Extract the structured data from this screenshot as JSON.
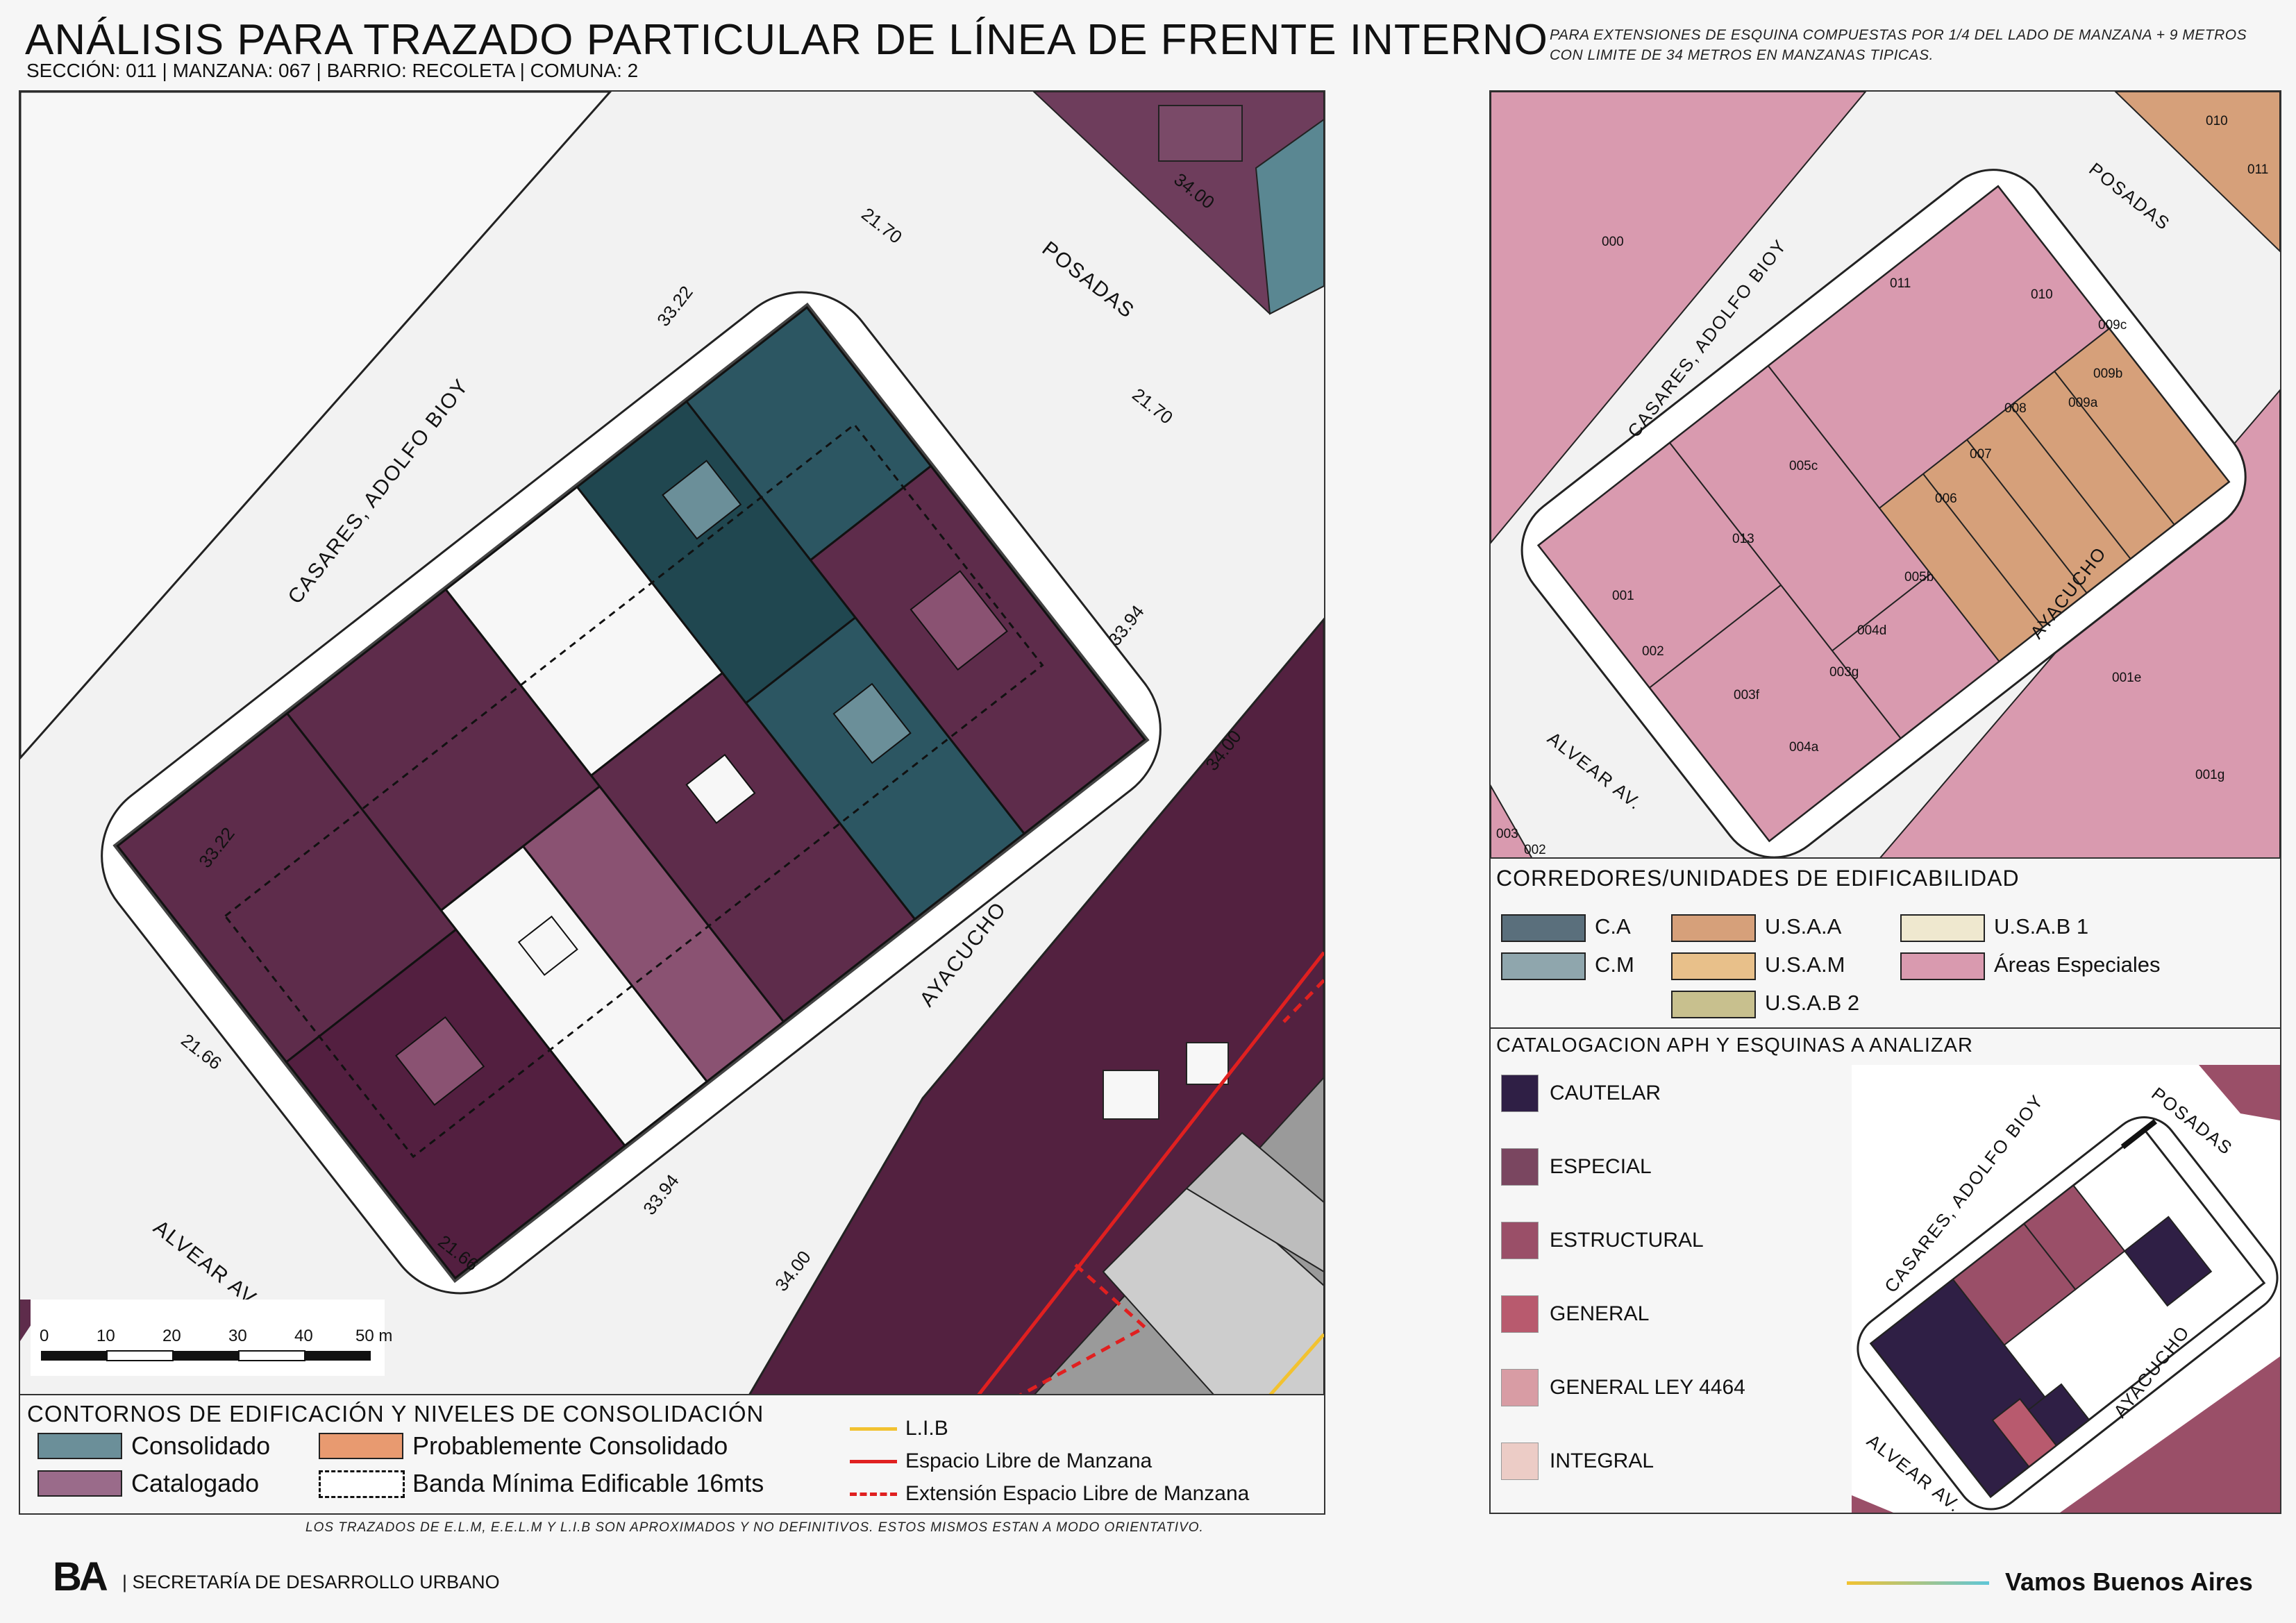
{
  "header": {
    "title": "ANÁLISIS PARA TRAZADO PARTICULAR DE LÍNEA DE FRENTE INTERNO",
    "subtitle": "SECCIÓN: 011 |  MANZANA: 067 | BARRIO: RECOLETA | COMUNA: 2",
    "note": "PARA EXTENSIONES DE ESQUINA COMPUESTAS POR 1/4 DEL LADO DE MANZANA + 9 METROS CON LIMITE DE 34 METROS EN MANZANAS TIPICAS."
  },
  "main_map": {
    "streets": {
      "north_east": "POSADAS",
      "north_west": "CASARES, ADOLFO BIOY",
      "south_east": "AYACUCHO",
      "south_west": "ALVEAR AV."
    },
    "dimensions": {
      "ne_front_1": "21.70",
      "ne_front_2": "21.70",
      "nw_front_1": "33.22",
      "nw_front_2": "33.22",
      "se_front_1": "33.94",
      "se_front_2": "33.94",
      "sw_front_1": "21.66",
      "sw_front_2": "21.66",
      "street_width_ne": "34.00",
      "street_width_se_1": "34.00",
      "street_width_se_2": "34.00"
    },
    "scale_bar": {
      "ticks": [
        "0",
        "10",
        "20",
        "30",
        "40",
        "50 m"
      ]
    },
    "colors": {
      "consolidado": "#6b8f99",
      "consolidado_dark": "#204750",
      "catalogado": "#5e2c4b",
      "catalogado_light": "#8a5272",
      "white_lot": "#f7f7f7"
    }
  },
  "legend_buildings": {
    "title": "CONTORNOS DE EDIFICACIÓN Y NIVELES DE CONSOLIDACIÓN",
    "items": [
      {
        "label": "Consolidado",
        "color": "#6b8f99"
      },
      {
        "label": "Probablemente Consolidado",
        "color": "#e89a70"
      },
      {
        "label": "Catalogado",
        "color": "#9a6b8a"
      },
      {
        "label": "Banda Mínima Edificable 16mts",
        "color": "#ffffff"
      }
    ],
    "lines": [
      {
        "label": "L.I.B",
        "color": "#f2c230"
      },
      {
        "label": "Espacio Libre de Manzana",
        "color": "#e02020"
      },
      {
        "label": "Extensión Espacio Libre de Manzana",
        "color": "#e02020"
      }
    ]
  },
  "footnote": "LOS TRAZADOS DE E.L.M, E.E.L.M Y L.I.B SON APROXIMADOS Y NO DEFINITIVOS. ESTOS MISMOS ESTAN A MODO ORIENTATIVO.",
  "parcel_map": {
    "streets": {
      "north_east": "POSADAS",
      "north_west": "CASARES, ADOLFO BIOY",
      "south_east": "AYACUCHO",
      "south_west": "ALVEAR AV."
    },
    "parcels": [
      "000",
      "011",
      "010",
      "009c",
      "009b",
      "009a",
      "008",
      "007",
      "006",
      "005c",
      "005b",
      "013",
      "004d",
      "004a",
      "003g",
      "003f",
      "002",
      "001",
      "001e",
      "001g",
      "010",
      "011",
      "003",
      "002"
    ]
  },
  "legend_corridors": {
    "title": "CORREDORES/UNIDADES DE EDIFICABILIDAD",
    "items": [
      {
        "label": "C.A",
        "color": "#5a6f7c"
      },
      {
        "label": "U.S.A.A",
        "color": "#d6a07a"
      },
      {
        "label": "U.S.A.B 1",
        "color": "#efe8cf"
      },
      {
        "label": "C.M",
        "color": "#8fa6ad"
      },
      {
        "label": "U.S.A.M",
        "color": "#e8c08a"
      },
      {
        "label": "Áreas Especiales",
        "color": "#d99aaf"
      },
      {
        "label": "U.S.A.B 2",
        "color": "#c8c08e"
      }
    ]
  },
  "legend_catalog": {
    "title": "CATALOGACION APH Y ESQUINAS A ANALIZAR",
    "items": [
      {
        "label": "CAUTELAR",
        "color": "#2f1f45"
      },
      {
        "label": "ESPECIAL",
        "color": "#7a4660"
      },
      {
        "label": "ESTRUCTURAL",
        "color": "#9a4f68"
      },
      {
        "label": "GENERAL",
        "color": "#b85a6e"
      },
      {
        "label": "GENERAL LEY 4464",
        "color": "#d89ca4"
      },
      {
        "label": "INTEGRAL",
        "color": "#ecccc6"
      }
    ],
    "streets": {
      "north_east": "POSADAS",
      "north_west": "CASARES, ADOLFO BIOY",
      "south_east": "AYACUCHO",
      "south_west": "ALVEAR AV."
    }
  },
  "footer": {
    "logo": "BA",
    "org": "| SECRETARÍA DE DESARROLLO URBANO",
    "slogan": "Vamos Buenos Aires"
  }
}
